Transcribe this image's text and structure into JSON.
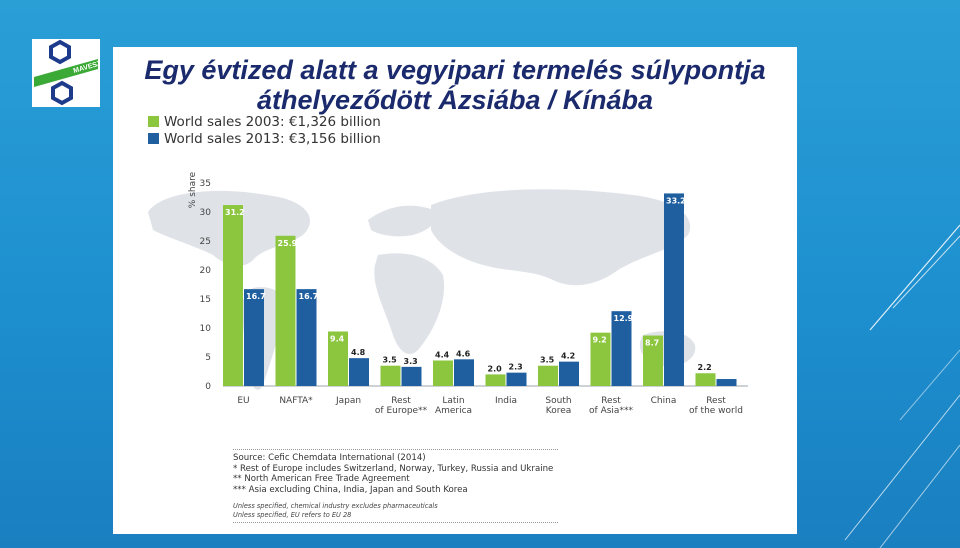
{
  "slide": {
    "title_line1": "Egy évtized alatt a vegyipari termelés súlypontja",
    "title_line2": "áthelyeződött  Ázsiába / Kínába",
    "logo_text": "MAVESZ"
  },
  "colors": {
    "series_2003": "#8cc63f",
    "series_2013": "#1f5fa0",
    "background": "#1d8fcf"
  },
  "chart_data": {
    "type": "bar",
    "ylabel": "% share",
    "ylim": [
      0,
      35
    ],
    "yticks": [
      "0",
      "5",
      "10",
      "15",
      "20",
      "25",
      "30",
      "35"
    ],
    "categories": [
      "EU",
      "NAFTA*",
      "Japan",
      "Rest of Europe**",
      "Latin America",
      "India",
      "South Korea",
      "Rest of Asia***",
      "China",
      "Rest of the world"
    ],
    "category_labels": [
      [
        "EU"
      ],
      [
        "NAFTA*"
      ],
      [
        "Japan"
      ],
      [
        "Rest",
        "of Europe**"
      ],
      [
        "Latin",
        "America"
      ],
      [
        "India"
      ],
      [
        "South",
        "Korea"
      ],
      [
        "Rest",
        "of Asia***"
      ],
      [
        "China"
      ],
      [
        "Rest",
        "of the world"
      ]
    ],
    "series": [
      {
        "name": "World sales 2003: €1,326 billion",
        "values": [
          31.2,
          25.9,
          9.4,
          3.5,
          4.4,
          2.0,
          3.5,
          9.2,
          8.7,
          2.2
        ],
        "labels": [
          "31.2",
          "25.9",
          "9.4",
          "3.5",
          "4.4",
          "2.0",
          "3.5",
          "9.2",
          "8.7",
          "2.2"
        ]
      },
      {
        "name": "World sales 2013: €3,156 billion",
        "values": [
          16.7,
          16.7,
          4.8,
          3.3,
          4.6,
          2.3,
          4.2,
          12.9,
          33.2,
          1.2
        ],
        "labels": [
          "16.7",
          "16.7",
          "4.8",
          "3.3",
          "4.6",
          "2.3",
          "4.2",
          "12.9",
          "33.2",
          ""
        ]
      }
    ]
  },
  "notes": {
    "lines": [
      "Source: Cefic Chemdata International (2014)",
      "* Rest of Europe includes Switzerland, Norway, Turkey, Russia and Ukraine",
      "** North American Free Trade Agreement",
      "*** Asia excluding China, India, Japan and South Korea"
    ],
    "small": [
      "Unless specified, chemical industry excludes pharmaceuticals",
      "Unless specified, EU refers to EU 28"
    ]
  }
}
